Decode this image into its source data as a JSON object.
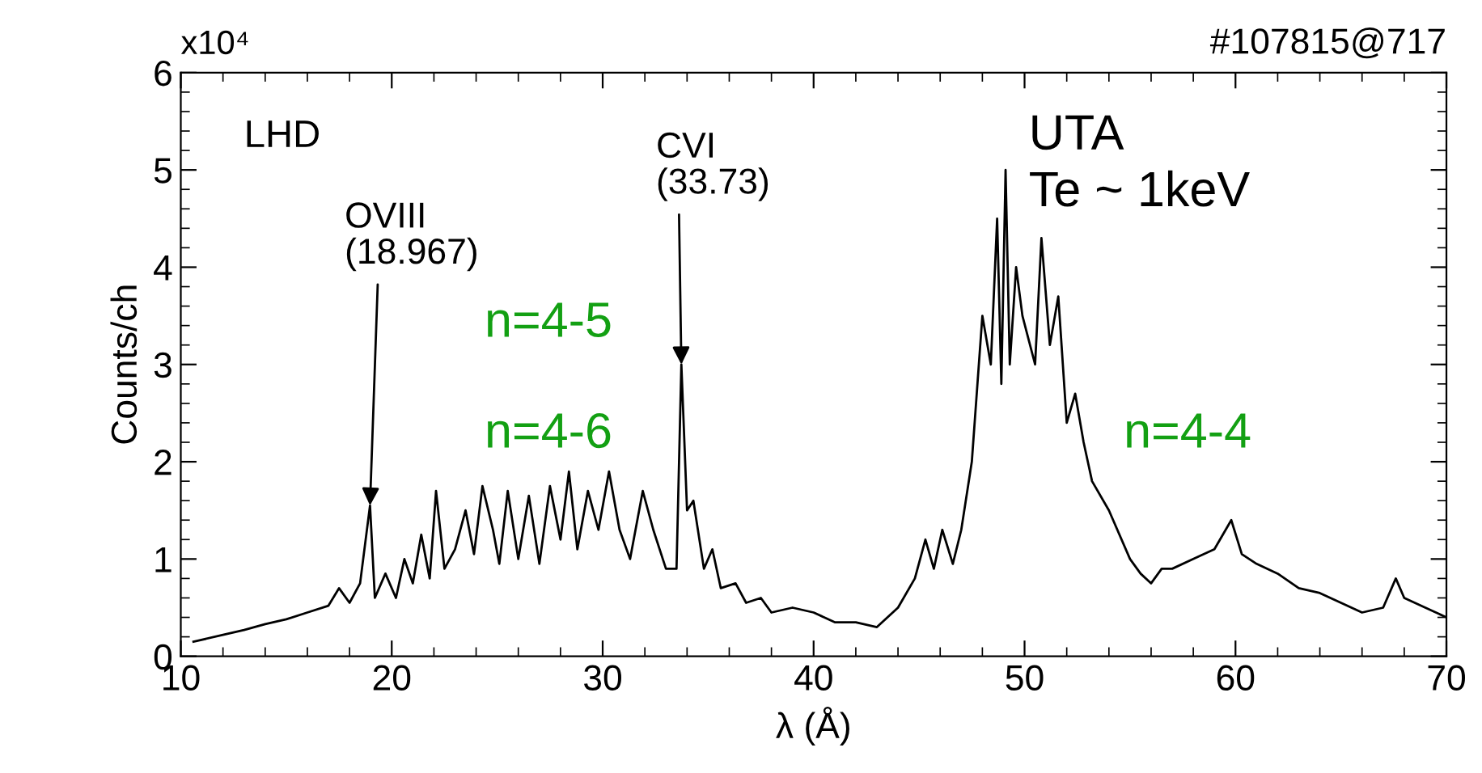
{
  "chart_data": {
    "type": "line",
    "xlabel": "λ (Å)",
    "ylabel": "Counts/ch",
    "xlim": [
      10,
      70
    ],
    "xticks": [
      10,
      20,
      30,
      40,
      50,
      60,
      70
    ],
    "ylim": [
      0,
      6
    ],
    "yticks": [
      0,
      1,
      2,
      3,
      4,
      5,
      6
    ],
    "grid": false,
    "marker": "none",
    "line_style": "solid",
    "series": [
      {
        "color": "#000000",
        "x": [
          10.6,
          12,
          13,
          14,
          15,
          16,
          17,
          17.5,
          18,
          18.5,
          18.97,
          19.2,
          19.7,
          20.2,
          20.6,
          21,
          21.4,
          21.8,
          22.1,
          22.5,
          23,
          23.5,
          23.9,
          24.3,
          24.8,
          25.1,
          25.5,
          26,
          26.5,
          27,
          27.5,
          28,
          28.4,
          28.8,
          29.3,
          29.8,
          30.3,
          30.8,
          31.3,
          31.9,
          32.4,
          33,
          33.5,
          33.73,
          34,
          34.3,
          34.8,
          35.2,
          35.6,
          36.3,
          36.8,
          37.5,
          38,
          39,
          40,
          40.5,
          41,
          42,
          43,
          44,
          44.8,
          45.3,
          45.7,
          46.1,
          46.6,
          47,
          47.5,
          48,
          48.4,
          48.7,
          48.9,
          49.1,
          49.3,
          49.6,
          49.9,
          50.5,
          50.8,
          51.2,
          51.6,
          52,
          52.4,
          52.8,
          53.2,
          54,
          55,
          55.5,
          56,
          56.5,
          57,
          58,
          59,
          59.8,
          60.3,
          61,
          62,
          63,
          64,
          65,
          66,
          67,
          67.6,
          68,
          69,
          70
        ],
        "values": [
          0.15,
          0.22,
          0.27,
          0.33,
          0.38,
          0.45,
          0.52,
          0.7,
          0.55,
          0.75,
          1.55,
          0.6,
          0.85,
          0.6,
          1.0,
          0.75,
          1.25,
          0.8,
          1.7,
          0.9,
          1.1,
          1.5,
          1.05,
          1.75,
          1.3,
          0.95,
          1.7,
          1.0,
          1.65,
          0.95,
          1.75,
          1.2,
          1.9,
          1.1,
          1.7,
          1.3,
          1.9,
          1.3,
          1.0,
          1.7,
          1.3,
          0.9,
          0.9,
          3.0,
          1.5,
          1.6,
          0.9,
          1.1,
          0.7,
          0.75,
          0.55,
          0.6,
          0.45,
          0.5,
          0.45,
          0.4,
          0.35,
          0.35,
          0.3,
          0.5,
          0.8,
          1.2,
          0.9,
          1.3,
          0.95,
          1.3,
          2.0,
          3.5,
          3.0,
          4.5,
          2.8,
          5.0,
          3.0,
          4.0,
          3.5,
          3.0,
          4.3,
          3.2,
          3.7,
          2.4,
          2.7,
          2.2,
          1.8,
          1.5,
          1.0,
          0.85,
          0.75,
          0.9,
          0.9,
          1.0,
          1.1,
          1.4,
          1.05,
          0.95,
          0.85,
          0.7,
          0.65,
          0.55,
          0.45,
          0.5,
          0.8,
          0.6,
          0.5,
          0.4
        ]
      }
    ],
    "annotations": [
      "x10⁴",
      "#107815@717",
      "LHD",
      {
        "text": "OVIII\n(18.967)",
        "x": 18.97,
        "y": 1.55
      },
      {
        "text": "CVI\n(33.73)",
        "x": 33.73,
        "y": 3.0
      },
      "UTA\nTe ~ 1keV",
      "n=4-5",
      "n=4-6",
      "n=4-4"
    ]
  }
}
